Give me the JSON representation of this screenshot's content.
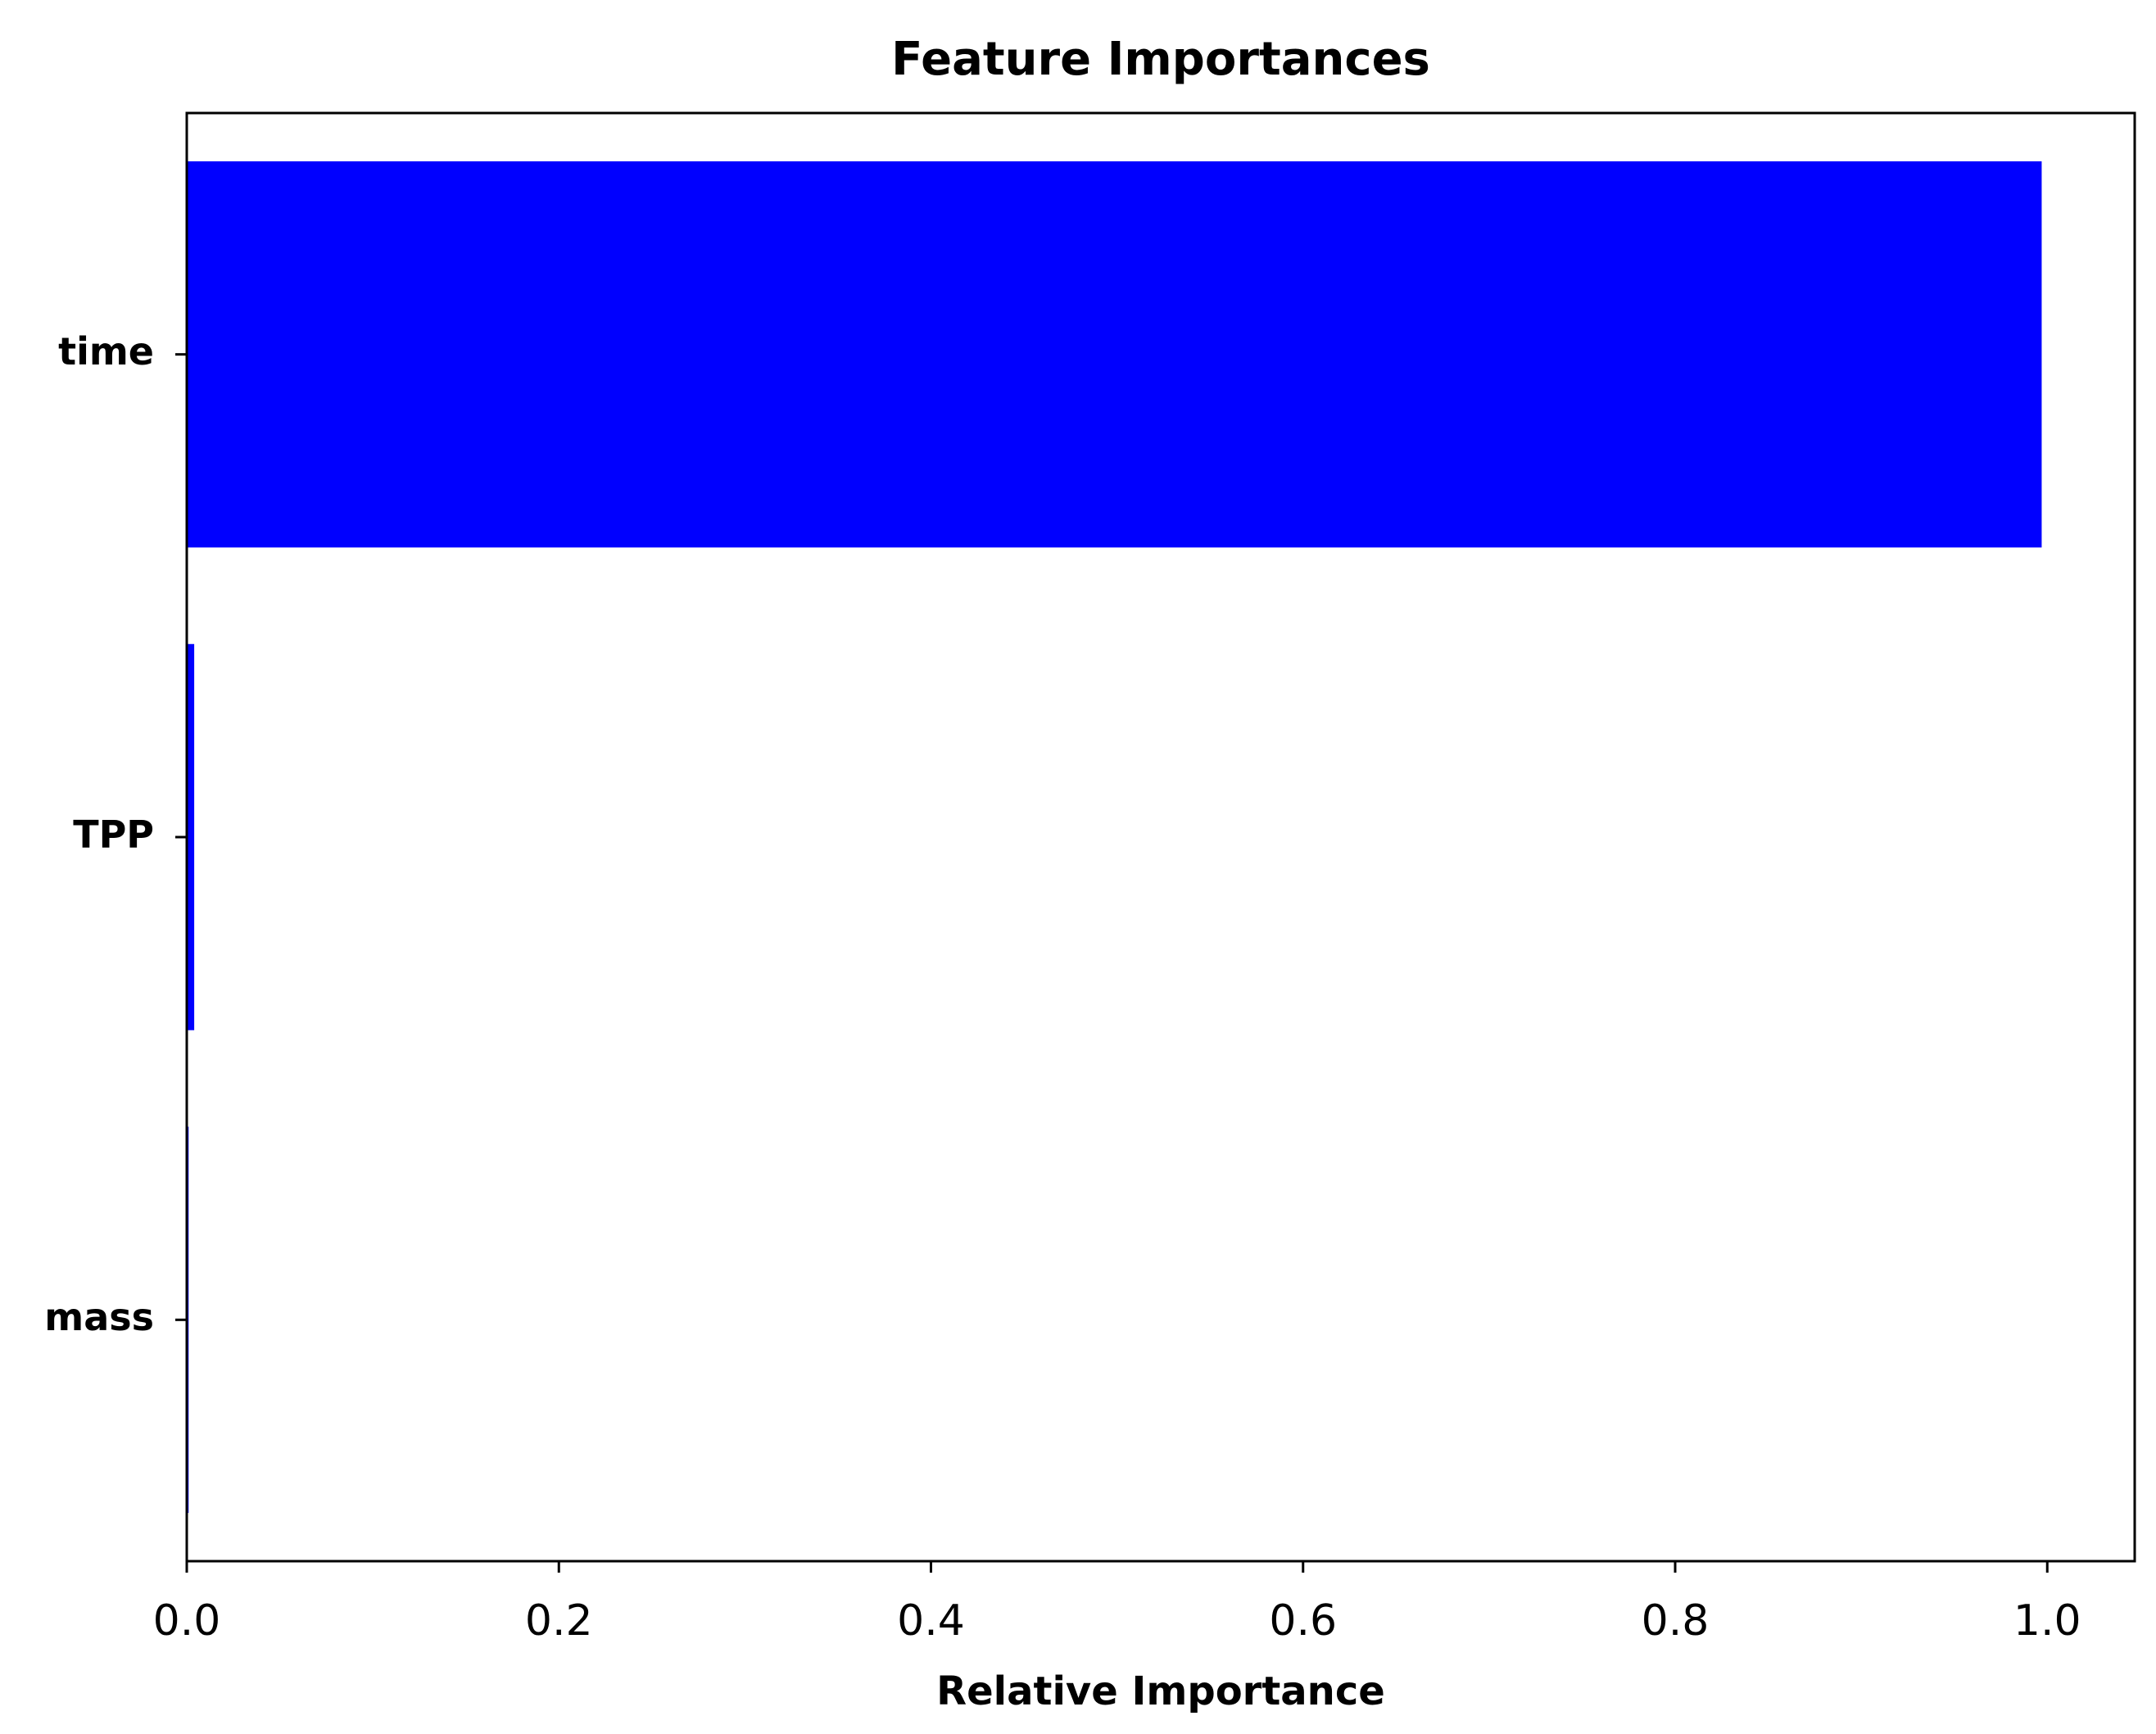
{
  "chart_data": {
    "type": "barh",
    "title": "Feature Importances",
    "x_label": "Relative Importance",
    "categories": [
      "time",
      "TPP",
      "mass"
    ],
    "values": [
      0.997,
      0.004,
      0.001
    ],
    "color": "#0000ff",
    "xlim": [
      0,
      1.047
    ],
    "xticks": [
      {
        "value": 0,
        "label": "0.0"
      },
      0.2,
      0.4,
      0.6,
      0.8,
      {
        "value": 1,
        "label": "1.0"
      }
    ]
  }
}
